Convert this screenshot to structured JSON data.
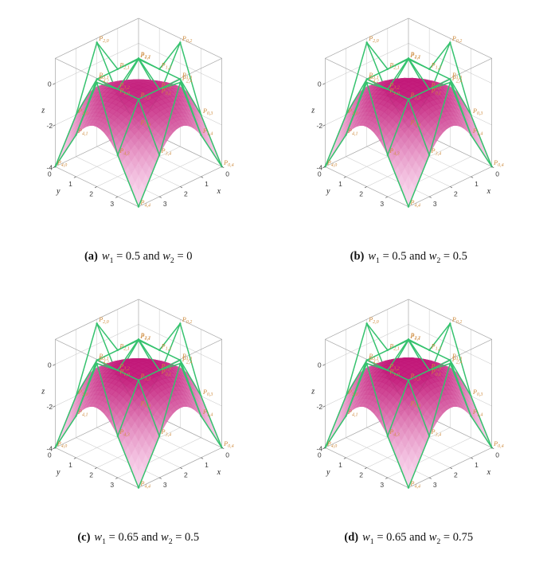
{
  "page": {
    "background": "#ffffff"
  },
  "caption_tokens": {
    "w": "w",
    "sub1": "1",
    "sub2": "2",
    "eq": " = ",
    "and": " and "
  },
  "chart_data": {
    "type": "surface",
    "description": "Four 3D plots of a rational biquartic Bezier surface (pink dome) with its green control net and orange control-point labels, for different weight settings",
    "axes": {
      "x_label": "x",
      "y_label": "y",
      "z_label": "z",
      "x_ticks": [
        0,
        1,
        2,
        3
      ],
      "y_ticks": [
        0,
        1,
        2,
        3
      ],
      "z_ticks": [
        0,
        -2,
        -4
      ],
      "x_range": [
        0,
        4
      ],
      "y_range": [
        0,
        4
      ],
      "z_range": [
        -4,
        1.2
      ]
    },
    "colors": {
      "surface_high": "#c21878",
      "surface_low": "#f9d5ed",
      "net": "#35c26e",
      "point_label": "#ce8b3e",
      "box": "#a6a6a6",
      "grid": "#cccccc"
    },
    "control_points": {
      "label_prefix": "P",
      "x": [
        0,
        1,
        2,
        3,
        4
      ],
      "y": [
        0,
        1,
        2,
        3,
        4
      ],
      "z": [
        [
          -4.0,
          -2.0,
          1.0,
          -2.0,
          -4.0
        ],
        [
          -2.0,
          0.2,
          0.2,
          0.2,
          -2.0
        ],
        [
          1.0,
          0.2,
          1.2,
          0.2,
          1.0
        ],
        [
          -2.0,
          0.2,
          0.2,
          0.2,
          -2.0
        ],
        [
          -4.0,
          -2.0,
          1.0,
          -2.0,
          -4.0
        ]
      ]
    },
    "panels": [
      {
        "label": "(a)",
        "w1": "0.5",
        "w2": "0"
      },
      {
        "label": "(b)",
        "w1": "0.5",
        "w2": "0.5"
      },
      {
        "label": "(c)",
        "w1": "0.65",
        "w2": "0.5"
      },
      {
        "label": "(d)",
        "w1": "0.65",
        "w2": "0.75"
      }
    ]
  }
}
